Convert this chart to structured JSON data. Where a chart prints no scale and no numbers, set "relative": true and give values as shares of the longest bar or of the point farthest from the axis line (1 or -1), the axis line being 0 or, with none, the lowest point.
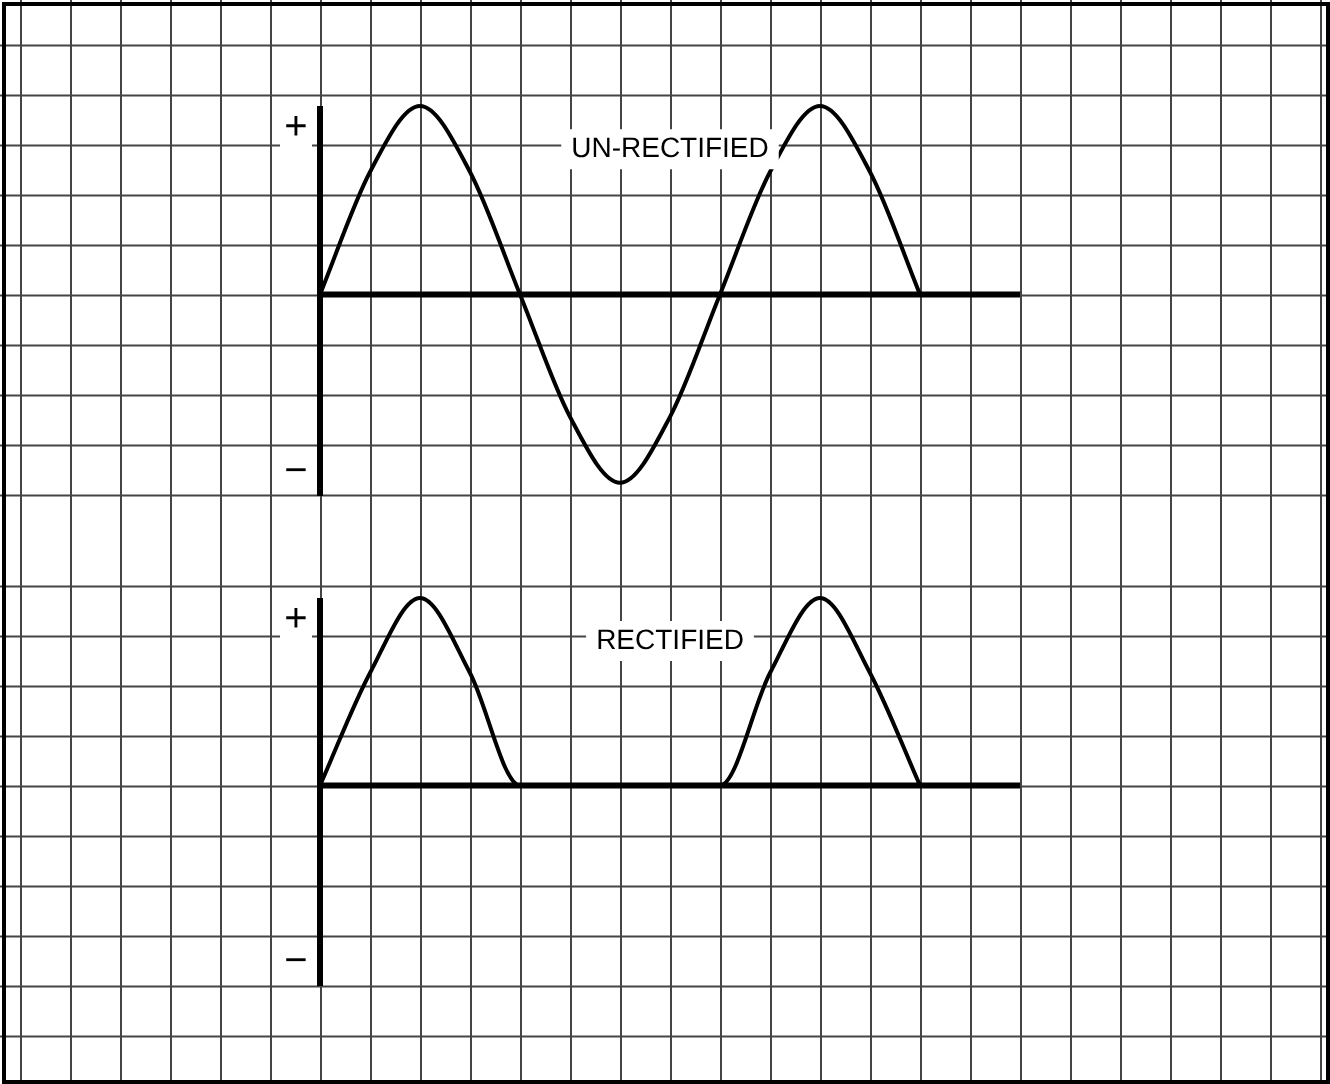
{
  "chart_data": [
    {
      "type": "line",
      "relative": true,
      "grid": true,
      "marker": "none",
      "categories": [
        null,
        null,
        null,
        null,
        null,
        null,
        null,
        null,
        null,
        null,
        null,
        null,
        null,
        null,
        null
      ],
      "series": [
        {
          "name": "UN-RECTIFIED",
          "color": "#000000",
          "values": [
            0,
            0.65,
            1,
            0.65,
            0,
            -0.65,
            -1,
            -0.65,
            0,
            0.65,
            1,
            0.65,
            0,
            null,
            null
          ]
        }
      ],
      "annotations": [
        "+",
        "−"
      ]
    },
    {
      "type": "line",
      "relative": true,
      "grid": true,
      "marker": "none",
      "categories": [
        null,
        null,
        null,
        null,
        null,
        null,
        null,
        null,
        null,
        null,
        null,
        null,
        null,
        null,
        null
      ],
      "series": [
        {
          "name": "RECTIFIED",
          "color": "#000000",
          "values": [
            0,
            0.6,
            1,
            0.6,
            0,
            0,
            0,
            0,
            0,
            0.6,
            1,
            0.6,
            0,
            null,
            null
          ]
        }
      ],
      "annotations": [
        "+",
        "−"
      ]
    }
  ]
}
